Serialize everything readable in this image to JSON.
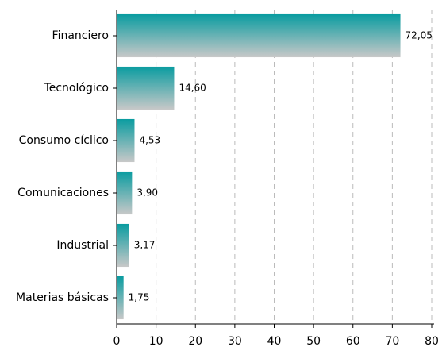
{
  "chart_data": {
    "type": "bar",
    "orientation": "horizontal",
    "categories": [
      "Financiero",
      "Tecnológico",
      "Consumo cíclico",
      "Comunicaciones",
      "Industrial",
      "Materias básicas"
    ],
    "values": [
      72.05,
      14.6,
      4.53,
      3.9,
      3.17,
      1.75
    ],
    "value_labels": [
      "72,05",
      "14,60",
      "4,53",
      "3,90",
      "3,17",
      "1,75"
    ],
    "color": [
      "#0a9ca0",
      "#c8c8c8"
    ],
    "xlim": [
      0,
      80
    ],
    "xticks": [
      0,
      10,
      20,
      30,
      40,
      50,
      60,
      70,
      80
    ],
    "grid": true
  }
}
